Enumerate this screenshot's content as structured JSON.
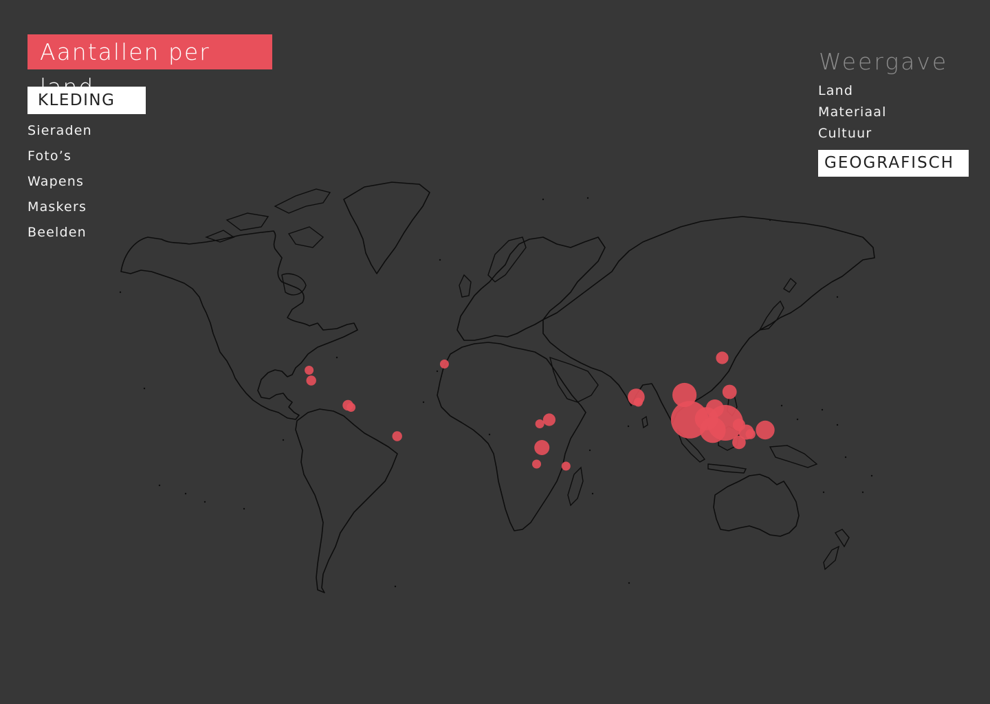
{
  "header": {
    "title": "Aantallen per land"
  },
  "categories": [
    {
      "label": "KLEDING",
      "active": true
    },
    {
      "label": "Sieraden",
      "active": false
    },
    {
      "label": "Foto’s",
      "active": false
    },
    {
      "label": "Wapens",
      "active": false
    },
    {
      "label": "Maskers",
      "active": false
    },
    {
      "label": "Beelden",
      "active": false
    }
  ],
  "view": {
    "title": "Weergave",
    "options": [
      {
        "label": "Land",
        "active": false
      },
      {
        "label": "Materiaal",
        "active": false
      },
      {
        "label": "Cultuur",
        "active": false
      },
      {
        "label": "GEOGRAFISCH",
        "active": true
      }
    ]
  },
  "colors": {
    "background": "#373737",
    "accent": "#e8505b",
    "coastline": "#0d0d0d"
  },
  "map": {
    "projection": "equirectangular world outline",
    "locations": [
      {
        "lat": 24.5,
        "lon": -77.5,
        "size": 0.5
      },
      {
        "lat": 19.5,
        "lon": -76.5,
        "size": 0.55
      },
      {
        "lat": 7.5,
        "lon": -59.0,
        "size": 0.6
      },
      {
        "lat": 6.5,
        "lon": -57.5,
        "size": 0.5
      },
      {
        "lat": -7.5,
        "lon": -35.5,
        "size": 0.55
      },
      {
        "lat": 27.5,
        "lon": -13.0,
        "size": 0.5
      },
      {
        "lat": 0.5,
        "lon": 37.0,
        "size": 0.7
      },
      {
        "lat": -1.5,
        "lon": 32.5,
        "size": 0.5
      },
      {
        "lat": -13.0,
        "lon": 33.5,
        "size": 0.85
      },
      {
        "lat": -21.0,
        "lon": 31.0,
        "size": 0.5
      },
      {
        "lat": -22.0,
        "lon": 45.0,
        "size": 0.5
      },
      {
        "lat": 11.5,
        "lon": 78.5,
        "size": 0.95
      },
      {
        "lat": 9.0,
        "lon": 79.5,
        "size": 0.5
      },
      {
        "lat": 30.5,
        "lon": 119.5,
        "size": 0.7
      },
      {
        "lat": 12.5,
        "lon": 101.5,
        "size": 1.35
      },
      {
        "lat": 14.0,
        "lon": 123.0,
        "size": 0.8
      },
      {
        "lat": 6.0,
        "lon": 116.0,
        "size": 1.0
      },
      {
        "lat": 0.5,
        "lon": 104.0,
        "size": 2.1
      },
      {
        "lat": 1.0,
        "lon": 112.0,
        "size": 1.3
      },
      {
        "lat": -1.0,
        "lon": 121.0,
        "size": 2.0
      },
      {
        "lat": -4.5,
        "lon": 115.0,
        "size": 1.45
      },
      {
        "lat": -2.0,
        "lon": 127.5,
        "size": 0.7
      },
      {
        "lat": -5.5,
        "lon": 131.0,
        "size": 0.85
      },
      {
        "lat": -6.5,
        "lon": 133.0,
        "size": 0.55
      },
      {
        "lat": -4.5,
        "lon": 140.0,
        "size": 1.05
      },
      {
        "lat": -10.5,
        "lon": 127.5,
        "size": 0.75
      }
    ]
  }
}
